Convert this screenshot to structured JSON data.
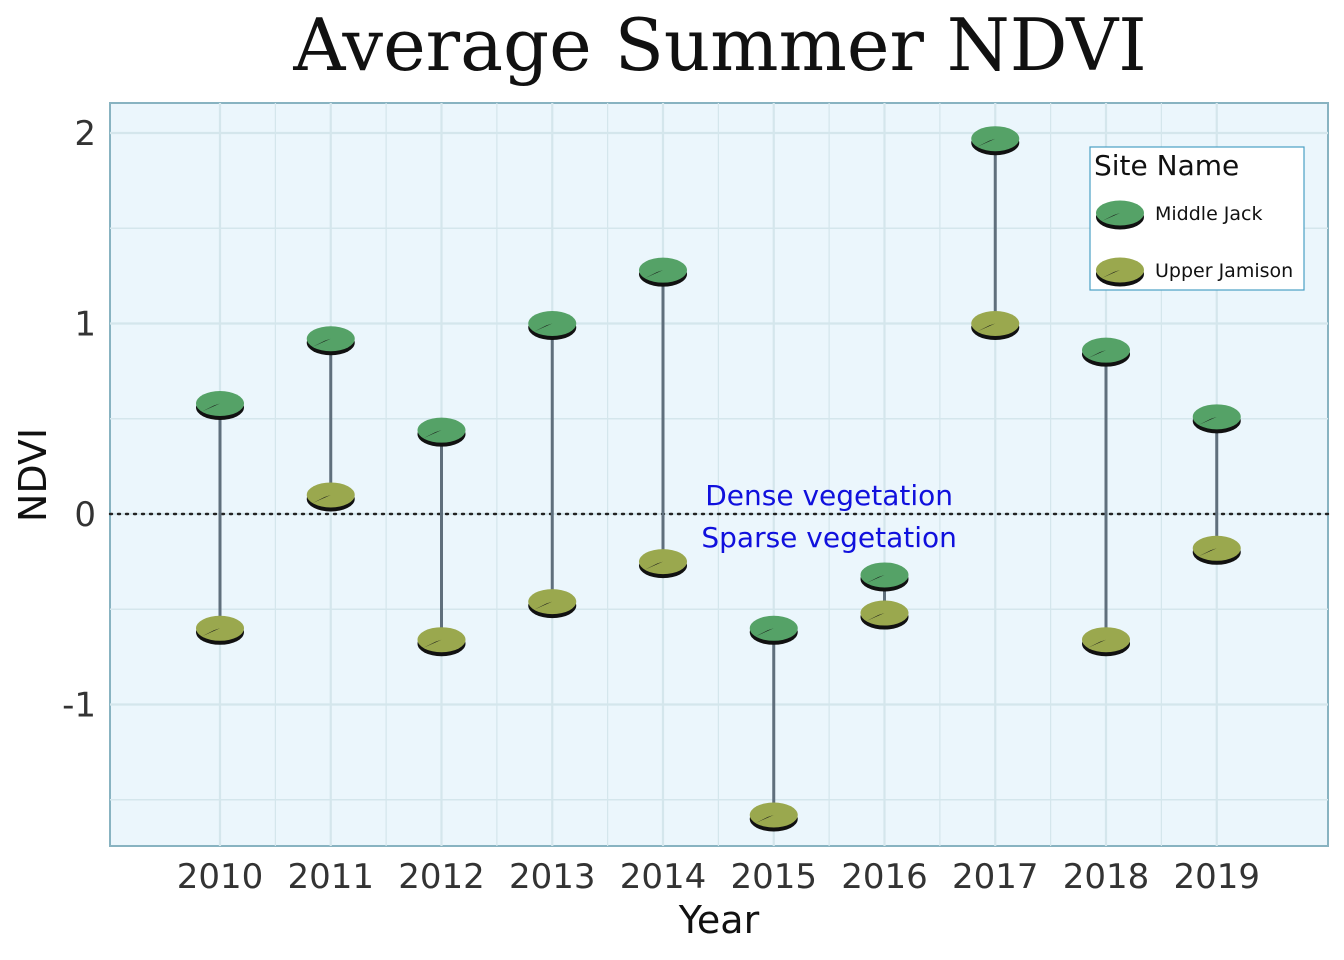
{
  "chart_data": {
    "type": "scatter",
    "subtype": "dumbbell",
    "title": "Average Summer NDVI",
    "xlabel": "Year",
    "ylabel": "NDVI",
    "categories": [
      "2010",
      "2011",
      "2012",
      "2013",
      "2014",
      "2015",
      "2016",
      "2017",
      "2018",
      "2019"
    ],
    "ylim": [
      -1.65,
      2.15
    ],
    "yticks": [
      -1,
      0,
      1,
      2
    ],
    "ytick_labels": [
      "-1",
      "0",
      "1",
      "2"
    ],
    "grid": true,
    "reference_line": {
      "y": 0,
      "style": "dotted"
    },
    "series": [
      {
        "name": "Middle Jack",
        "color": "#55a267",
        "values": [
          0.58,
          0.92,
          0.44,
          1.0,
          1.28,
          -0.6,
          -0.32,
          1.97,
          0.86,
          0.51
        ]
      },
      {
        "name": "Upper Jamison",
        "color": "#9aa84e",
        "values": [
          -0.6,
          0.1,
          -0.66,
          -0.46,
          -0.25,
          -1.58,
          -0.52,
          1.0,
          -0.66,
          -0.18
        ]
      }
    ],
    "connector_color": "#5f6f7c",
    "annotations": [
      {
        "text": "Dense vegetation",
        "x": "2015.5",
        "y": 0.1
      },
      {
        "text": "Sparse vegetation",
        "x": "2015.5",
        "y": -0.12
      }
    ],
    "legend": {
      "title": "Site Name",
      "placement": "top-right"
    },
    "colors": {
      "panel_bg": "#ebf6fc",
      "panel_border": "#88b3c1",
      "grid": "#d4e6ec",
      "annotation": "#1010dd"
    }
  }
}
